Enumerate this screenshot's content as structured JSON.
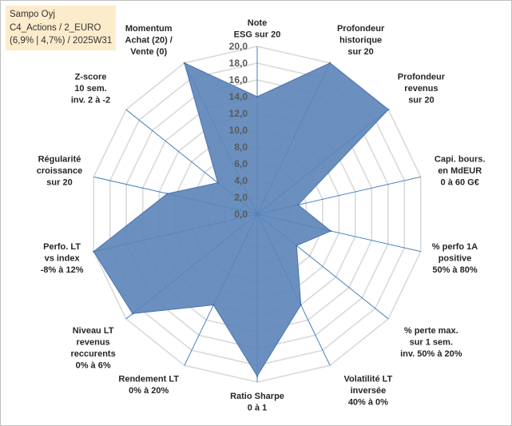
{
  "info_box": {
    "line1": "Sampo Oyj",
    "line2": "C4_Actions / 2_EURO",
    "line3": "(6,9% | 4,7%) / 2025W31"
  },
  "chart_data": {
    "type": "radar",
    "rlim": [
      0,
      20
    ],
    "tick_step": 2,
    "tick_labels": [
      "0,0",
      "2,0",
      "4,0",
      "6,0",
      "8,0",
      "10,0",
      "12,0",
      "14,0",
      "16,0",
      "18,0",
      "20,0"
    ],
    "grid": true,
    "legend": "none",
    "colors": {
      "fill": "#5b84b8",
      "stroke": "#4a72b0",
      "grid": "#d9d9d9",
      "spoke": "#2e75b6"
    },
    "axes": [
      {
        "label": [
          "Note",
          "ESG sur 20"
        ]
      },
      {
        "label": [
          "Profondeur",
          "historique",
          "sur 20"
        ]
      },
      {
        "label": [
          "Profondeur",
          "revenus",
          "sur 20"
        ]
      },
      {
        "label": [
          "Capi. bours.",
          "en MdEUR",
          "0 à 60 G€"
        ]
      },
      {
        "label": [
          "% perfo 1A",
          "positive",
          "50% à 80%"
        ]
      },
      {
        "label": [
          "% perte max.",
          "sur 1 sem.",
          "inv. 50% à 20%"
        ]
      },
      {
        "label": [
          "Volatilité LT",
          "inversée",
          "40% à 0%"
        ]
      },
      {
        "label": [
          "Ratio Sharpe",
          "0 à 1"
        ]
      },
      {
        "label": [
          "Rendement LT",
          "0% à 20%"
        ]
      },
      {
        "label": [
          "Niveau LT",
          "revenus",
          "reccurents",
          "0% à 6%"
        ]
      },
      {
        "label": [
          "Perfo. LT",
          "vs index",
          "-8% à 12%"
        ]
      },
      {
        "label": [
          "Régularité",
          "croissance",
          "sur 20"
        ]
      },
      {
        "label": [
          "Z-score",
          "10 sem.",
          "inv. 2 à -2"
        ]
      },
      {
        "label": [
          "Momentum",
          "Achat (20) /",
          "Vente (0)"
        ]
      }
    ],
    "series": [
      {
        "values": [
          14.0,
          20.0,
          20.0,
          5.0,
          9.0,
          6.0,
          12.0,
          19.3,
          12.0,
          19.0,
          20.0,
          11.0,
          6.0,
          20.0
        ]
      }
    ]
  }
}
